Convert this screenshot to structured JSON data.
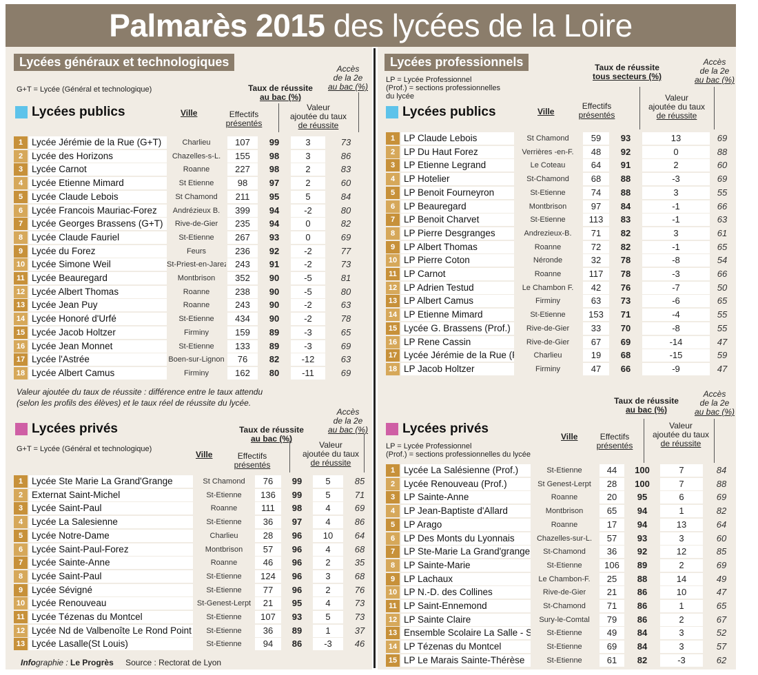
{
  "title": {
    "strong": "Palmarès 2015",
    "rest": "des lycées de la Loire"
  },
  "left": {
    "section_title": "Lycées généraux  et technologiques",
    "gt_note": "G+T = Lycée (Général et technologique)",
    "public": {
      "title": "Lycées publics",
      "headers": {
        "ville": "Ville",
        "eff1": "Effectifs",
        "eff2": "présentés",
        "taux1": "Taux de réussite",
        "taux2": "au bac (%)",
        "va1": "Valeur",
        "va2": "ajoutée du taux",
        "va3": "de réussite",
        "acc1": "Accès",
        "acc2": "de la 2e",
        "acc3": "au bac (%)"
      },
      "rows": [
        {
          "rank": "1",
          "name": "Lycée Jérémie de la Rue (G+T)",
          "ville": "Charlieu",
          "eff": "107",
          "taux": "99",
          "va": "3",
          "acc": "73"
        },
        {
          "rank": "2",
          "name": "Lycée des Horizons",
          "ville": "Chazelles-s-L.",
          "eff": "155",
          "taux": "98",
          "va": "3",
          "acc": "86"
        },
        {
          "rank": "3",
          "name": "Lycée Carnot",
          "ville": "Roanne",
          "eff": "227",
          "taux": "98",
          "va": "2",
          "acc": "83"
        },
        {
          "rank": "4",
          "name": "Lycée Etienne Mimard",
          "ville": "St Etienne",
          "eff": "98",
          "taux": "97",
          "va": "2",
          "acc": "60"
        },
        {
          "rank": "5",
          "name": "Lycée Claude Lebois",
          "ville": "St Chamond",
          "eff": "211",
          "taux": "95",
          "va": "5",
          "acc": "84"
        },
        {
          "rank": "6",
          "name": "Lycée Francois Mauriac-Forez",
          "ville": "Andrézieux B.",
          "eff": "399",
          "taux": "94",
          "va": "-2",
          "acc": "80"
        },
        {
          "rank": "7",
          "name": "Lycée Georges Brassens (G+T)",
          "ville": "Rive-de-Gier",
          "eff": "235",
          "taux": "94",
          "va": "0",
          "acc": "82"
        },
        {
          "rank": "8",
          "name": "Lycée Claude Fauriel",
          "ville": "St-Etienne",
          "eff": "267",
          "taux": "93",
          "va": "0",
          "acc": "69"
        },
        {
          "rank": "9",
          "name": "Lycée du Forez",
          "ville": "Feurs",
          "eff": "236",
          "taux": "92",
          "va": "-2",
          "acc": "77"
        },
        {
          "rank": "10",
          "name": "Lycée Simone Weil",
          "ville": "St-Priest-en-Jarez",
          "eff": "243",
          "taux": "91",
          "va": "-2",
          "acc": "73"
        },
        {
          "rank": "11",
          "name": "Lycée Beauregard",
          "ville": "Montbrison",
          "eff": "352",
          "taux": "90",
          "va": "-5",
          "acc": "81"
        },
        {
          "rank": "12",
          "name": "Lycée Albert Thomas",
          "ville": "Roanne",
          "eff": "238",
          "taux": "90",
          "va": "-5",
          "acc": "80"
        },
        {
          "rank": "13",
          "name": "Lycée Jean Puy",
          "ville": "Roanne",
          "eff": "243",
          "taux": "90",
          "va": "-2",
          "acc": "63"
        },
        {
          "rank": "14",
          "name": "Lycée Honoré d'Urfé",
          "ville": "St-Etienne",
          "eff": "434",
          "taux": "90",
          "va": "-2",
          "acc": "78"
        },
        {
          "rank": "15",
          "name": "Lycée Jacob Holtzer",
          "ville": "Firminy",
          "eff": "159",
          "taux": "89",
          "va": "-3",
          "acc": "65"
        },
        {
          "rank": "16",
          "name": "Lycée Jean Monnet",
          "ville": "St-Etienne",
          "eff": "133",
          "taux": "89",
          "va": "-3",
          "acc": "69"
        },
        {
          "rank": "17",
          "name": "Lycée l'Astrée",
          "ville": "Boen-sur-Lignon",
          "eff": "76",
          "taux": "82",
          "va": "-12",
          "acc": "63"
        },
        {
          "rank": "18",
          "name": "Lycée Albert Camus",
          "ville": "Firminy",
          "eff": "162",
          "taux": "80",
          "va": "-11",
          "acc": "69"
        }
      ]
    },
    "va_note1": "Valeur ajoutée du taux de réussite : différence entre le taux attendu",
    "va_note2": "(selon les profils des élèves) et le taux réel de réussite du lycée.",
    "private": {
      "title": "Lycées privés",
      "gt_note": "G+T = Lycée (Général et technologique)",
      "headers": {
        "ville": "Ville",
        "eff1": "Effectifs",
        "eff2": "présentés",
        "taux1": "Taux de réussite",
        "taux2": "au bac (%)",
        "va1": "Valeur",
        "va2": "ajoutée du taux",
        "va3": "de réussite",
        "acc1": "Accès",
        "acc2": "de la 2e",
        "acc3": "au bac (%)"
      },
      "rows": [
        {
          "rank": "1",
          "name": "Lycée Ste Marie La Grand'Grange",
          "ville": "St Chamond",
          "eff": "76",
          "taux": "99",
          "va": "5",
          "acc": "85"
        },
        {
          "rank": "2",
          "name": "Externat Saint-Michel",
          "ville": "St-Etienne",
          "eff": "136",
          "taux": "99",
          "va": "5",
          "acc": "71"
        },
        {
          "rank": "3",
          "name": "Lycée Saint-Paul",
          "ville": "Roanne",
          "eff": "111",
          "taux": "98",
          "va": "4",
          "acc": "69"
        },
        {
          "rank": "4",
          "name": "Lycée La Salesienne",
          "ville": "St-Etienne",
          "eff": "36",
          "taux": "97",
          "va": "4",
          "acc": "86"
        },
        {
          "rank": "5",
          "name": "Lycée Notre-Dame",
          "ville": "Charlieu",
          "eff": "28",
          "taux": "96",
          "va": "10",
          "acc": "64"
        },
        {
          "rank": "6",
          "name": "Lycée Saint-Paul-Forez",
          "ville": "Montbrison",
          "eff": "57",
          "taux": "96",
          "va": "4",
          "acc": "68"
        },
        {
          "rank": "7",
          "name": "Lycée Sainte-Anne",
          "ville": "Roanne",
          "eff": "46",
          "taux": "96",
          "va": "2",
          "acc": "35"
        },
        {
          "rank": "8",
          "name": "Lycée Saint-Paul",
          "ville": "St-Etienne",
          "eff": "124",
          "taux": "96",
          "va": "3",
          "acc": "68"
        },
        {
          "rank": "9",
          "name": "Lycée Sévigné",
          "ville": "St-Etienne",
          "eff": "77",
          "taux": "96",
          "va": "2",
          "acc": "76"
        },
        {
          "rank": "10",
          "name": "Lycée Renouveau",
          "ville": "St-Genest-Lerpt",
          "eff": "21",
          "taux": "95",
          "va": "4",
          "acc": "73"
        },
        {
          "rank": "11",
          "name": "Lycée Tézenas du Montcel",
          "ville": "St-Etienne",
          "eff": "107",
          "taux": "93",
          "va": "5",
          "acc": "73"
        },
        {
          "rank": "12",
          "name": "Lycée Nd de Valbenoîte Le Rond Point",
          "ville": "St-Etienne",
          "eff": "36",
          "taux": "89",
          "va": "1",
          "acc": "37"
        },
        {
          "rank": "13",
          "name": "Lycée Lasalle(St Louis)",
          "ville": "St-Etienne",
          "eff": "94",
          "taux": "86",
          "va": "-3",
          "acc": "46"
        }
      ]
    }
  },
  "right": {
    "section_title": "Lycées professionnels",
    "lp_note1": "LP = Lycée Professionnel",
    "lp_note2": "(Prof.) = sections  professionnelles",
    "lp_note3": "du lycée",
    "public": {
      "title": "Lycées publics",
      "headers": {
        "ville": "Ville",
        "eff1": "Effectifs",
        "eff2": "présentés",
        "taux1": "Taux de réussite",
        "taux2": "tous secteurs (%)",
        "va1": "Valeur",
        "va2": "ajoutée du taux",
        "va3": "de réussite",
        "acc1": "Accès",
        "acc2": "de la 2e",
        "acc3": "au bac (%)"
      },
      "rows": [
        {
          "rank": "1",
          "name": "LP Claude Lebois",
          "ville": "St Chamond",
          "eff": "59",
          "taux": "93",
          "va": "13",
          "acc": "69"
        },
        {
          "rank": "2",
          "name": "LP Du Haut Forez",
          "ville": "Verrières -en-F.",
          "eff": "48",
          "taux": "92",
          "va": "0",
          "acc": "88"
        },
        {
          "rank": "3",
          "name": "LP  Etienne Legrand",
          "ville": "Le Coteau",
          "eff": "64",
          "taux": "91",
          "va": "2",
          "acc": "60"
        },
        {
          "rank": "4",
          "name": "LP Hotelier",
          "ville": "St-Chamond",
          "eff": "68",
          "taux": "88",
          "va": "-3",
          "acc": "69"
        },
        {
          "rank": "5",
          "name": "LP Benoit Fourneyron",
          "ville": "St-Etienne",
          "eff": "74",
          "taux": "88",
          "va": "3",
          "acc": "55"
        },
        {
          "rank": "6",
          "name": "LP Beauregard",
          "ville": "Montbrison",
          "eff": "97",
          "taux": "84",
          "va": "-1",
          "acc": "66"
        },
        {
          "rank": "7",
          "name": "LP Benoit Charvet",
          "ville": "St-Etienne",
          "eff": "113",
          "taux": "83",
          "va": "-1",
          "acc": "63"
        },
        {
          "rank": "8",
          "name": "LP Pierre Desgranges",
          "ville": "Andrezieux-B.",
          "eff": "71",
          "taux": "82",
          "va": "3",
          "acc": "61"
        },
        {
          "rank": "9",
          "name": "LP Albert Thomas",
          "ville": "Roanne",
          "eff": "72",
          "taux": "82",
          "va": "-1",
          "acc": "65"
        },
        {
          "rank": "10",
          "name": "LP Pierre Coton",
          "ville": "Néronde",
          "eff": "32",
          "taux": "78",
          "va": "-8",
          "acc": "54"
        },
        {
          "rank": "11",
          "name": "LP Carnot",
          "ville": "Roanne",
          "eff": "117",
          "taux": "78",
          "va": "-3",
          "acc": "66"
        },
        {
          "rank": "12",
          "name": "LP Adrien Testud",
          "ville": "Le Chambon F.",
          "eff": "42",
          "taux": "76",
          "va": "-7",
          "acc": "50"
        },
        {
          "rank": "13",
          "name": "LP Albert Camus",
          "ville": "Firminy",
          "eff": "63",
          "taux": "73",
          "va": "-6",
          "acc": "65"
        },
        {
          "rank": "14",
          "name": "LP Etienne Mimard",
          "ville": "St-Etienne",
          "eff": "153",
          "taux": "71",
          "va": "-4",
          "acc": "55"
        },
        {
          "rank": "15",
          "name": "Lycée G. Brassens (Prof.)",
          "ville": "Rive-de-Gier",
          "eff": "33",
          "taux": "70",
          "va": "-8",
          "acc": "55"
        },
        {
          "rank": "16",
          "name": "LP Rene Cassin",
          "ville": "Rive-de-Gier",
          "eff": "67",
          "taux": "69",
          "va": "-14",
          "acc": "47"
        },
        {
          "rank": "17",
          "name": "Lycée Jérémie de la Rue (Prof.)",
          "ville": "Charlieu",
          "eff": "19",
          "taux": "68",
          "va": "-15",
          "acc": "59"
        },
        {
          "rank": "18",
          "name": "LP Jacob Holtzer",
          "ville": "Firminy",
          "eff": "47",
          "taux": "66",
          "va": "-9",
          "acc": "47"
        }
      ]
    },
    "private": {
      "title": "Lycées privés",
      "lp_note1": "LP = Lycée Professionnel",
      "lp_note2": "(Prof.) = sections professionnelles du lycée",
      "headers": {
        "ville": "Ville",
        "eff1": "Effectifs",
        "eff2": "présentés",
        "taux1": "Taux de réussite",
        "taux2": "au bac (%)",
        "va1": "Valeur",
        "va2": "ajoutée du taux",
        "va3": "de réussite",
        "acc1": "Accès",
        "acc2": "de la 2e",
        "acc3": "au bac (%)"
      },
      "rows": [
        {
          "rank": "1",
          "name": "Lycée La Salésienne (Prof.)",
          "ville": "St-Etienne",
          "eff": "44",
          "taux": "100",
          "va": "7",
          "acc": "84"
        },
        {
          "rank": "2",
          "name": "Lycée Renouveau (Prof.)",
          "ville": "St Genest-Lerpt",
          "eff": "28",
          "taux": "100",
          "va": "7",
          "acc": "88"
        },
        {
          "rank": "3",
          "name": "LP Sainte-Anne",
          "ville": "Roanne",
          "eff": "20",
          "taux": "95",
          "va": "6",
          "acc": "69"
        },
        {
          "rank": "4",
          "name": "LP Jean-Baptiste d'Allard",
          "ville": "Montbrison",
          "eff": "65",
          "taux": "94",
          "va": "1",
          "acc": "82"
        },
        {
          "rank": "5",
          "name": "LP Arago",
          "ville": "Roanne",
          "eff": "17",
          "taux": "94",
          "va": "13",
          "acc": "64"
        },
        {
          "rank": "6",
          "name": "LP Des Monts du Lyonnais",
          "ville": "Chazelles-sur-L.",
          "eff": "57",
          "taux": "93",
          "va": "3",
          "acc": "60"
        },
        {
          "rank": "7",
          "name": "LP Ste-Marie La Grand'grange",
          "ville": "St-Chamond",
          "eff": "36",
          "taux": "92",
          "va": "12",
          "acc": "85"
        },
        {
          "rank": "8",
          "name": "LP Sainte-Marie",
          "ville": "St-Etienne",
          "eff": "106",
          "taux": "89",
          "va": "2",
          "acc": "69"
        },
        {
          "rank": "9",
          "name": "LP Lachaux",
          "ville": "Le Chambon-F.",
          "eff": "25",
          "taux": "88",
          "va": "14",
          "acc": "49"
        },
        {
          "rank": "10",
          "name": "LP N.-D. des Collines",
          "ville": "Rive-de-Gier",
          "eff": "21",
          "taux": "86",
          "va": "10",
          "acc": "47"
        },
        {
          "rank": "11",
          "name": "LP Saint-Ennemond",
          "ville": "St-Chamond",
          "eff": "71",
          "taux": "86",
          "va": "1",
          "acc": "65"
        },
        {
          "rank": "12",
          "name": "LP Sainte Claire",
          "ville": "Sury-le-Comtal",
          "eff": "79",
          "taux": "86",
          "va": "2",
          "acc": "67"
        },
        {
          "rank": "13",
          "name": "Ensemble Scolaire La Salle - S",
          "ville": "St-Etienne",
          "eff": "49",
          "taux": "84",
          "va": "3",
          "acc": "52"
        },
        {
          "rank": "14",
          "name": "LP Tézenas du Montcel",
          "ville": "St-Etienne",
          "eff": "69",
          "taux": "84",
          "va": "3",
          "acc": "57"
        },
        {
          "rank": "15",
          "name": "LP Le Marais Sainte-Thérèse",
          "ville": "St-Etienne",
          "eff": "61",
          "taux": "82",
          "va": "-3",
          "acc": "62"
        }
      ]
    }
  },
  "credit": {
    "info_strong": "Info",
    "info_rest": "graphie : ",
    "source_name": "Le Progrès",
    "source": "Source : Rectorat de Lyon"
  }
}
